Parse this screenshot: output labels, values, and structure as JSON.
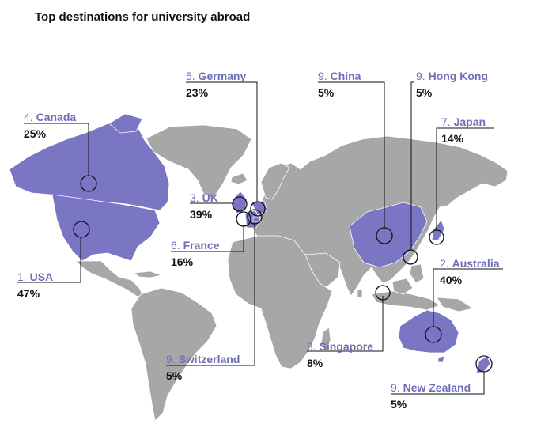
{
  "title": "Top destinations for university abroad",
  "colors": {
    "highlight": "#7a76c4",
    "land": "#a7a7a7",
    "accent_text": "#6e6eb8"
  },
  "destinations": [
    {
      "id": "usa",
      "rank": "1.",
      "name": "USA",
      "share": "47%"
    },
    {
      "id": "australia",
      "rank": "2.",
      "name": "Australia",
      "share": "40%"
    },
    {
      "id": "uk",
      "rank": "3.",
      "name": "UK",
      "share": "39%"
    },
    {
      "id": "canada",
      "rank": "4.",
      "name": "Canada",
      "share": "25%"
    },
    {
      "id": "germany",
      "rank": "5.",
      "name": "Germany",
      "share": "23%"
    },
    {
      "id": "france",
      "rank": "6.",
      "name": "France",
      "share": "16%"
    },
    {
      "id": "japan",
      "rank": "7.",
      "name": "Japan",
      "share": "14%"
    },
    {
      "id": "singapore",
      "rank": "8.",
      "name": "Singapore",
      "share": "8%"
    },
    {
      "id": "china",
      "rank": "9.",
      "name": "China",
      "share": "5%"
    },
    {
      "id": "hongkong",
      "rank": "9.",
      "name": "Hong Kong",
      "share": "5%"
    },
    {
      "id": "switzerland",
      "rank": "9.",
      "name": "Switzerland",
      "share": "5%"
    },
    {
      "id": "newzealand",
      "rank": "9.",
      "name": "New Zealand",
      "share": "5%"
    }
  ]
}
